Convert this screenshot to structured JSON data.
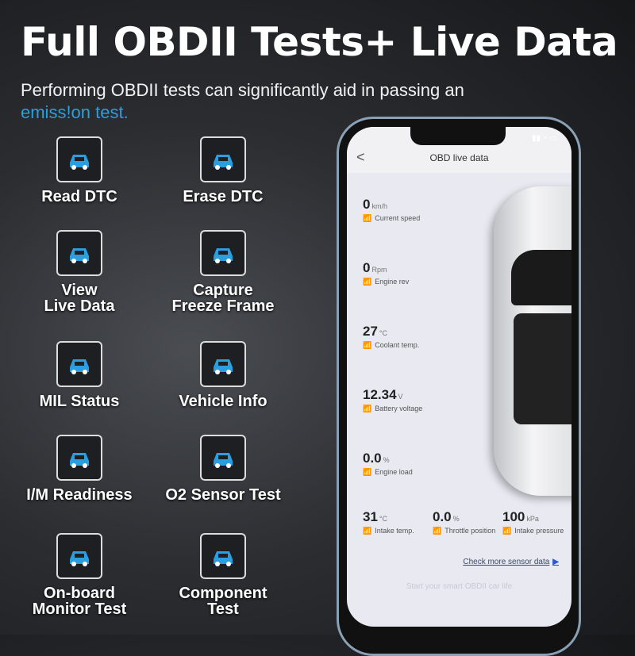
{
  "headline": "Full OBDII Tests+ Live Data",
  "subtitle": "Performing OBDII tests can significantly aid in passing an",
  "subtitle_highlight": "emiss!on test.",
  "accent": "#2a9fe0",
  "features": [
    {
      "label": "Read DTC",
      "icon": "car-search-icon"
    },
    {
      "label": "Erase DTC",
      "icon": "car-erase-icon"
    },
    {
      "label": "View\nLive Data",
      "icon": "car-chart-icon"
    },
    {
      "label": "Capture\nFreeze Frame",
      "icon": "freeze-frame-icon"
    },
    {
      "label": "MIL Status",
      "icon": "car-warning-icon"
    },
    {
      "label": "Vehicle Info",
      "icon": "phone-car-icon"
    },
    {
      "label": "I/M Readiness",
      "icon": "browser-icon"
    },
    {
      "label": "O2 Sensor Test",
      "icon": "o2-sensor-icon"
    },
    {
      "label": "On-board\nMonitor Test",
      "icon": "car-shield-icon"
    },
    {
      "label": "Component\nTest",
      "icon": "sliders-icon"
    }
  ],
  "phone": {
    "title": "OBD live data",
    "metrics": [
      {
        "value": "0",
        "unit": "km/h",
        "label": "Current speed"
      },
      {
        "value": "0",
        "unit": "Rpm",
        "label": "Engine rev"
      },
      {
        "value": "27",
        "unit": "°C",
        "label": "Coolant temp."
      },
      {
        "value": "12.34",
        "unit": "V",
        "label": "Battery voltage"
      },
      {
        "value": "0.0",
        "unit": "%",
        "label": "Engine load"
      },
      {
        "value": "31",
        "unit": "°C",
        "label": "Intake temp."
      },
      {
        "value": "0.0",
        "unit": "%",
        "label": "Throttle position"
      },
      {
        "value": "100",
        "unit": "kPa",
        "label": "Intake pressure"
      }
    ],
    "more_link": "Check more sensor data",
    "footer": "Start your smart OBDII car life"
  }
}
